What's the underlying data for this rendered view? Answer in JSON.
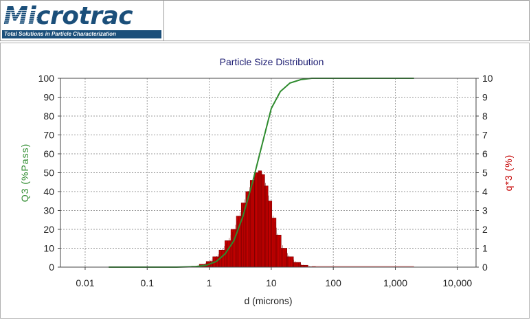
{
  "header": {
    "logo_text": "Microtrac",
    "tagline": "Total Solutions in Particle Characterization"
  },
  "chart_data": {
    "type": "line",
    "title": "Particle Size Distribution",
    "xlabel": "d (microns)",
    "ylabel_left": "Q3 (%Pass)",
    "ylabel_right": "q*3 (%)",
    "x_scale": "log",
    "xlim": [
      0.004,
      20000
    ],
    "ylim_left": [
      0,
      100
    ],
    "ylim_right": [
      0,
      10
    ],
    "x_ticks": [
      0.01,
      0.1,
      1,
      10,
      100,
      1000,
      10000
    ],
    "x_tick_labels": [
      "0.01",
      "0.1",
      "1",
      "10",
      "100",
      "1,000",
      "10,000"
    ],
    "y_left_ticks": [
      "0",
      "10",
      "20",
      "30",
      "40",
      "50",
      "60",
      "70",
      "80",
      "90",
      "100"
    ],
    "y_right_ticks": [
      "0",
      "1",
      "2",
      "3",
      "4",
      "5",
      "6",
      "7",
      "8",
      "9",
      "10"
    ],
    "grid": true,
    "colors": {
      "cumulative": "#2e8b2e",
      "density": "#c40000",
      "density_edge": "#7a0000",
      "left_axis_label": "#2e8b2e",
      "right_axis_label": "#c40000",
      "title": "#1a1a70"
    },
    "series": [
      {
        "axis": "left",
        "style": "line",
        "x": [
          0.024,
          0.3,
          0.6,
          0.9,
          1.3,
          1.8,
          2.5,
          3.5,
          5,
          7,
          10,
          14,
          20,
          30,
          45,
          60,
          100,
          1000,
          2000
        ],
        "y": [
          0,
          0,
          0.3,
          1,
          3,
          7,
          14,
          27,
          45,
          64,
          84,
          93,
          97.5,
          99.3,
          100,
          100,
          100,
          100,
          100
        ]
      },
      {
        "axis": "right",
        "style": "bars",
        "x": [
          0.6,
          0.8,
          1.0,
          1.3,
          1.6,
          2.0,
          2.5,
          3.0,
          3.6,
          4.2,
          5.0,
          5.8,
          6.6,
          7.4,
          8.3,
          9.5,
          11,
          13,
          16,
          20,
          26,
          34,
          45
        ],
        "y": [
          0.05,
          0.15,
          0.3,
          0.55,
          0.9,
          1.4,
          2.0,
          2.7,
          3.4,
          4.0,
          4.6,
          5.0,
          5.1,
          4.9,
          4.3,
          3.5,
          2.6,
          1.7,
          1.0,
          0.55,
          0.25,
          0.1,
          0.02
        ]
      }
    ]
  }
}
